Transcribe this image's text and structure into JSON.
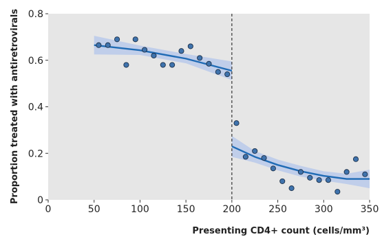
{
  "chart_data": {
    "type": "scatter",
    "title": "",
    "xlabel": "Presenting CD4+ count (cells/mm³)",
    "ylabel": "Proportion treated with antiretrovirals",
    "xlim": [
      0,
      350
    ],
    "ylim": [
      0,
      0.8
    ],
    "x_ticks": [
      "0",
      "50",
      "100",
      "150",
      "200",
      "250",
      "300",
      "350"
    ],
    "y_ticks": [
      "0",
      "0.2",
      "0.4",
      "0.6",
      "0.8"
    ],
    "grid": false,
    "threshold_x": 200,
    "colors": {
      "background": "#e6e6e6",
      "points": "#3f73ad",
      "point_edge": "#1b2f48",
      "fit_line": "#1f6bb5",
      "confidence_band": "#b9c9ea",
      "threshold_line": "#333333"
    },
    "points": [
      {
        "x": 55,
        "y": 0.665
      },
      {
        "x": 65,
        "y": 0.665
      },
      {
        "x": 75,
        "y": 0.69
      },
      {
        "x": 85,
        "y": 0.58
      },
      {
        "x": 95,
        "y": 0.69
      },
      {
        "x": 105,
        "y": 0.645
      },
      {
        "x": 115,
        "y": 0.62
      },
      {
        "x": 125,
        "y": 0.58
      },
      {
        "x": 135,
        "y": 0.58
      },
      {
        "x": 145,
        "y": 0.64
      },
      {
        "x": 155,
        "y": 0.66
      },
      {
        "x": 165,
        "y": 0.61
      },
      {
        "x": 175,
        "y": 0.585
      },
      {
        "x": 185,
        "y": 0.55
      },
      {
        "x": 195,
        "y": 0.54
      },
      {
        "x": 205,
        "y": 0.33
      },
      {
        "x": 215,
        "y": 0.185
      },
      {
        "x": 225,
        "y": 0.21
      },
      {
        "x": 235,
        "y": 0.18
      },
      {
        "x": 245,
        "y": 0.135
      },
      {
        "x": 255,
        "y": 0.08
      },
      {
        "x": 265,
        "y": 0.05
      },
      {
        "x": 275,
        "y": 0.12
      },
      {
        "x": 285,
        "y": 0.095
      },
      {
        "x": 295,
        "y": 0.085
      },
      {
        "x": 305,
        "y": 0.085
      },
      {
        "x": 315,
        "y": 0.035
      },
      {
        "x": 325,
        "y": 0.12
      },
      {
        "x": 335,
        "y": 0.175
      },
      {
        "x": 345,
        "y": 0.11
      }
    ],
    "fit_segments": [
      {
        "line": [
          [
            50,
            0.665
          ],
          [
            100,
            0.643
          ],
          [
            150,
            0.607
          ],
          [
            200,
            0.555
          ]
        ],
        "band": [
          [
            50,
            0.625,
            0.705
          ],
          [
            100,
            0.623,
            0.663
          ],
          [
            150,
            0.587,
            0.627
          ],
          [
            200,
            0.515,
            0.595
          ]
        ]
      },
      {
        "line": [
          [
            200,
            0.23
          ],
          [
            225,
            0.185
          ],
          [
            250,
            0.15
          ],
          [
            275,
            0.123
          ],
          [
            300,
            0.103
          ],
          [
            325,
            0.09
          ],
          [
            350,
            0.09
          ]
        ],
        "band": [
          [
            200,
            0.185,
            0.275
          ],
          [
            225,
            0.16,
            0.21
          ],
          [
            250,
            0.127,
            0.173
          ],
          [
            275,
            0.1,
            0.146
          ],
          [
            300,
            0.083,
            0.123
          ],
          [
            325,
            0.068,
            0.112
          ],
          [
            350,
            0.05,
            0.13
          ]
        ]
      }
    ]
  }
}
